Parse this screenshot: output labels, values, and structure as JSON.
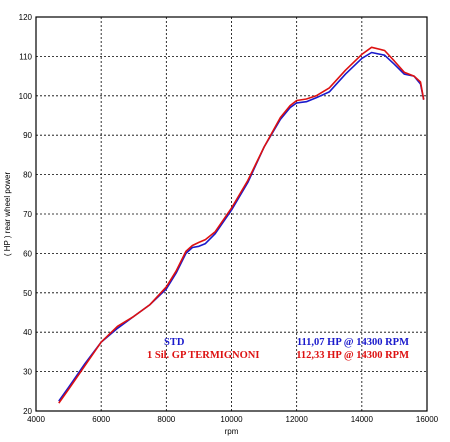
{
  "chart_data": {
    "type": "line",
    "xlabel": "rpm",
    "ylabel": "( HP )  rear  wheel  power",
    "xlim": [
      4000,
      16000
    ],
    "ylim": [
      20,
      120
    ],
    "x_ticks": [
      4000,
      6000,
      8000,
      10000,
      12000,
      14000,
      16000
    ],
    "y_ticks": [
      20,
      30,
      40,
      50,
      60,
      70,
      80,
      90,
      100,
      110,
      120
    ],
    "grid": true,
    "legend_placement": "bottom-right",
    "series": [
      {
        "name": "STD",
        "peak_label": "111,07 HP @ 14300 RPM",
        "color": "#1a1acc",
        "x": [
          4700,
          5000,
          5500,
          6000,
          6500,
          7000,
          7500,
          8000,
          8300,
          8600,
          8800,
          9000,
          9200,
          9500,
          10000,
          10500,
          11000,
          11500,
          11800,
          12000,
          12300,
          12600,
          13000,
          13500,
          14000,
          14300,
          14700,
          15000,
          15300,
          15600,
          15800,
          15900
        ],
        "y": [
          22.5,
          26,
          32,
          37.5,
          41,
          44,
          47,
          51,
          55,
          60,
          61.5,
          61.8,
          62.5,
          65,
          71,
          78,
          87,
          94,
          97,
          98.2,
          98.5,
          99.5,
          101,
          105.5,
          109.5,
          111,
          110.3,
          108,
          105.5,
          105,
          103,
          99
        ]
      },
      {
        "name": "1 Sil. GP TERMIGNONI",
        "peak_label": "112,33 HP @ 14300 RPM",
        "color": "#dd1111",
        "x": [
          4700,
          5000,
          5500,
          6000,
          6500,
          7000,
          7500,
          8000,
          8300,
          8600,
          8800,
          9000,
          9200,
          9500,
          10000,
          10500,
          11000,
          11500,
          11800,
          12000,
          12300,
          12600,
          13000,
          13500,
          14000,
          14300,
          14700,
          15000,
          15300,
          15600,
          15800,
          15900
        ],
        "y": [
          22,
          25.5,
          31.5,
          37.5,
          41.5,
          44,
          47,
          51.5,
          55.5,
          60.5,
          62,
          62.8,
          63.5,
          65.5,
          71.5,
          78.5,
          87,
          94.5,
          97.5,
          98.8,
          99.2,
          100,
          102,
          106.5,
          110.5,
          112.3,
          111.5,
          108.8,
          106,
          105,
          103.5,
          99
        ]
      }
    ]
  }
}
